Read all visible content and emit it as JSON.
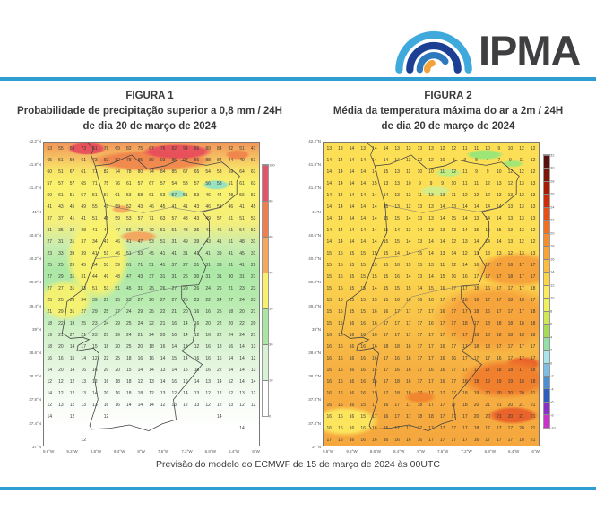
{
  "header": {
    "logo_text": "IPMA"
  },
  "brand_colors": {
    "rule_blue": "#2e9fd0",
    "arc_light_blue": "#3fa9dc",
    "arc_navy": "#1c3f94",
    "arc_mid_blue": "#2e79be",
    "arc_orange": "#f2a33c"
  },
  "figures": [
    {
      "title": "FIGURA 1",
      "subtitle": "Probabilidade de precipitação superior a 0,8 mm / 24H",
      "dateline": "de dia 20 de março de 2024"
    },
    {
      "title": "FIGURA 2",
      "subtitle": "Média da temperatura máxima do ar a 2m / 24H",
      "dateline": "de dia 20 de março de 2024"
    }
  ],
  "caption": "Previsão do modelo do ECMWF de 15 de março de 2024 às 00UTC",
  "chart_data": [
    {
      "type": "heatmap",
      "title": "Probabilidade de precipitação superior a 0,8 mm / 24H de dia 20 de março de 2024",
      "unit": "%",
      "xlabel": "longitude",
      "ylabel": "latitude",
      "x_ticks": [
        "9.6°W",
        "9.2°W",
        "8.8°W",
        "8.4°W",
        "8°W",
        "7.6°W",
        "7.2°W",
        "6.8°W",
        "6.4°W",
        "6°W"
      ],
      "y_ticks": [
        "42.2°N",
        "41.8°N",
        "41.4°N",
        "41°N",
        "40.6°N",
        "40.2°N",
        "39.8°N",
        "39.4°N",
        "39°N",
        "38.6°N",
        "38.2°N",
        "37.8°N",
        "37.4°N",
        "37°N"
      ],
      "grid_rows": [
        "53 55 58 73 61 78 69 82 75 67 76 82 94 86 89 84 82 51 47",
        "65 51 59 61 73 92 82 78 85 89 93 85 97 86 88 84 44 49 51",
        "60 51 67 61 71 82 74 78 80 74 84 85 67 65 54 53 59 64 61",
        "57 57 57 65 71 75 76 61 57 67 57 54 53 57 56 58 51 61 63",
        "50 61 51 57 51 57 61 53 58 61 63 57 51 53 46 44 48 56 53",
        "41 43 45 49 55 41 59 52 43 46 45 41 41 43 46 51 46 41 45",
        "37 37 41 41 51 48 59 53 57 71 63 57 43 43 49 57 51 51 53",
        "31 35 34 38 41 44 47 56 78 79 51 51 43 35 41 45 51 54 52",
        "27 31 31 37 34 41 46 41 47 53 51 31 49 39 43 41 51 48 31",
        "23 33 39 39 41 51 46 51 53 45 41 41 31 41 41 39 41 45 31",
        "25 25 29 45 54 53 59 61 71 51 41 37 27 31 31 33 31 41 29",
        "27 29 31 31 44 49 48 47 43 37 31 31 26 30 31 31 30 31 27",
        "27 27 31 33 51 53 51 45 31 25 26 27 29 26 24 26 21 23 23",
        "25 25 26 34 39 29 25 23 27 26 27 27 25 23 22 24 27 24 23",
        "21 29 31 27 29 25 27 24 29 25 22 21 20 16 16 25 18 20 21",
        "18 22 19 25 23 24 29 25 24 22 21 16 14 16 20 22 20 22 20",
        "19 21 27 21 23 25 29 24 21 24 20 16 14 12 16 22 24 24 21",
        "18 20 14 17 15 18 20 25 20 18 16 14 13 12 16 18 16 14 13",
        "16 16 15 14 12 22 25 18 16 16 14 15 14 16 16 16 14 14 12",
        "14 20 14 16 16 20 20 15 14 14 13 14 15 16 16 22 14 14 13",
        "12 12 12 13 12 16 18 18 12 13 14 16 16 14 13 14 12 14 14",
        "14 12 12 13 14 20 16 18 18 12 13 12 14 13 12 12 12 13 12",
        "12 13 12 13 13 16 16 14 14 14 12 13 12 13 12 12 13 12 12",
        "14 . 12 . . 12 . . . . . . . . . 14 . . .",
        ". . . . . . . . . . . . . . . . . 14 .",
        ". . . 12 . . . . . . . . . . . . . . ."
      ],
      "colorbar": {
        "labels": [
          "100",
          "90",
          "80",
          "70",
          "50",
          "30",
          "10",
          "0"
        ],
        "colors": [
          "#e4556a",
          "#ef7f4c",
          "#f5a85e",
          "#faf06b",
          "#a9e7a3",
          "#d9f2d4",
          "#ffffff"
        ]
      }
    },
    {
      "type": "heatmap",
      "title": "Média da temperatura máxima do ar a 2m / 24H de dia 20 de março de 2024",
      "unit": "°C",
      "xlabel": "longitude",
      "ylabel": "latitude",
      "x_ticks": [
        "9.6°W",
        "9.2°W",
        "8.8°W",
        "8.4°W",
        "8°W",
        "7.6°W",
        "7.2°W",
        "6.8°W",
        "6.4°W",
        "6°W"
      ],
      "y_ticks": [
        "42.2°N",
        "41.8°N",
        "41.4°N",
        "41°N",
        "40.6°N",
        "40.2°N",
        "39.8°N",
        "39.4°N",
        "39°N",
        "38.6°N",
        "38.2°N",
        "37.8°N",
        "37.4°N",
        "37°N"
      ],
      "grid_rows": [
        "13 13 14 13 14 14 13 13 13 13 12 12 11 11 10 9 10 12 12",
        "14 14 14 14 14 14 14 13 12 12 10 8 9 8 4 7 9 11 12",
        "14 14 14 14 14 15 13 11 10 10 11 12 11 9 9 10 12 12 12",
        "14 14 14 14 15 13 13 10 9 9 9 10 11 11 12 13 12 13 13",
        "14 14 14 14 14 14 13 12 11 13 13 11 12 12 12 13 13 12 13",
        "14 14 14 14 14 15 13 12 13 13 14 13 14 14 14 14 13 13 13",
        "14 14 14 14 14 15 15 14 13 13 14 15 14 13 14 14 13 13 13",
        "14 14 14 14 14 15 14 13 14 13 13 13 14 15 15 15 13 13 12",
        "14 14 14 14 14 15 15 14 13 14 14 12 13 14 14 14 13 12 12",
        "15 15 15 15 15 15 14 14 15 14 13 14 12 13 13 13 12 13 13",
        "15 15 15 15 15 15 16 15 15 13 11 12 14 16 17 17 16 17 17",
        "15 15 15 15 15 15 16 14 13 14 15 16 16 17 17 17 18 17 17",
        "15 15 15 15 14 15 15 15 14 15 16 17 17 18 16 17 17 17 18",
        "15 15 15 15 15 15 16 16 16 16 17 17 16 16 17 17 18 18 17",
        "15 15 15 15 16 16 17 17 17 17 16 17 17 18 16 17 17 17 18",
        "15 15 16 16 16 17 17 17 17 16 17 17 18 17 18 18 18 18 18",
        "16 16 16 16 16 17 17 17 17 17 17 17 17 18 18 18 18 18 18",
        "16 16 16 16 16 18 18 16 17 17 16 17 17 18 18 17 17 17 17",
        "16 16 16 16 16 17 16 16 17 17 16 16 17 17 17 16 17 17 17",
        "16 16 16 16 16 17 16 16 17 16 16 17 17 17 17 18 18 17 18",
        "16 16 16 16 16 17 18 16 17 17 16 17 18 18 19 19 19 18 18",
        "16 16 16 16 15 17 18 18 17 17 17 17 18 19 20 20 20 20 21",
        "16 16 16 15 17 16 17 17 18 17 17 17 18 20 21 21 20 21 21",
        "16 16 16 15 17 16 17 17 18 18 17 17 17 20 20 21 20 21 21",
        "16 16 16 16 16 16 17 17 17 17 17 17 17 18 17 17 17 20 21",
        "17 16 16 16 16 16 16 16 16 17 17 17 17 16 17 17 17 18 21"
      ],
      "colorbar": {
        "labels": [
          "32",
          "30",
          "28",
          "26",
          "24",
          "22",
          "20",
          "18",
          "16",
          "14",
          "12",
          "10",
          "8",
          "6",
          "4",
          "2",
          "0",
          "-2",
          "-4",
          "-6",
          "-8",
          "-10"
        ],
        "colors": [
          "#5a0f0f",
          "#7e1509",
          "#a81c05",
          "#cf2b09",
          "#e84e15",
          "#f2701f",
          "#f68c2c",
          "#f9a335",
          "#fbbc3f",
          "#fdd348",
          "#fde95c",
          "#eef05e",
          "#cfe854",
          "#a5dc55",
          "#93dfa5",
          "#a8e4ea",
          "#7dbde6",
          "#4a8fd4",
          "#2c5fc0",
          "#8b2fc9",
          "#cb30cb"
        ]
      }
    }
  ]
}
